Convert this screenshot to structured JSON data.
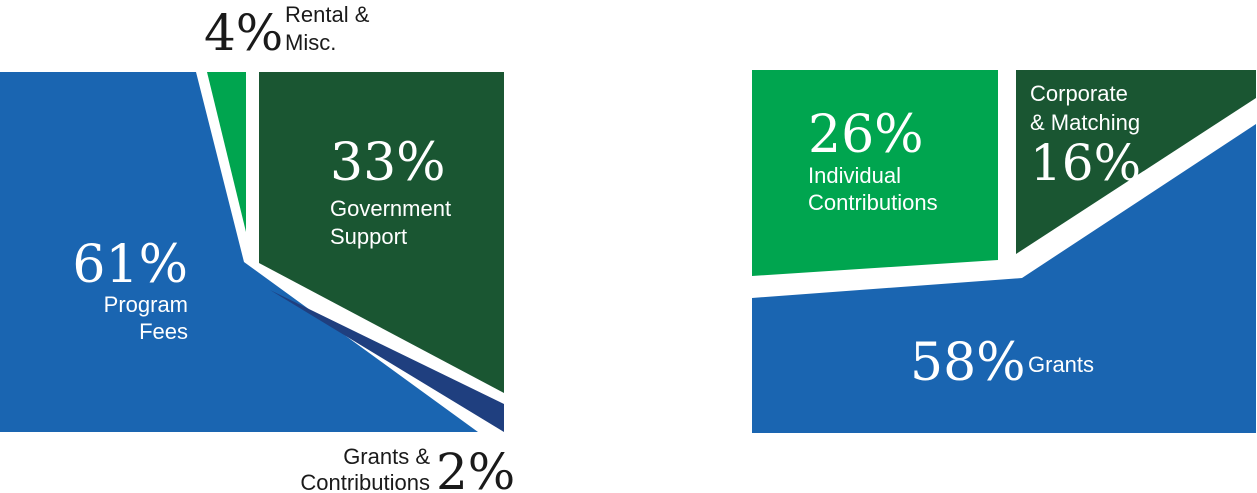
{
  "chart_data": [
    {
      "type": "area",
      "title": "",
      "segments": [
        {
          "name": "Program Fees",
          "label_lines": [
            "Program",
            "Fees"
          ],
          "value": 61,
          "display": "61%",
          "color": "#1a65b1"
        },
        {
          "name": "Rental & Misc.",
          "label_lines": [
            "Rental &",
            "Misc."
          ],
          "value": 4,
          "display": "4%",
          "color": "#00a54f"
        },
        {
          "name": "Government Support",
          "label_lines": [
            "Government",
            "Support"
          ],
          "value": 33,
          "display": "33%",
          "color": "#1a5632"
        },
        {
          "name": "Grants & Contributions",
          "label_lines": [
            "Grants &",
            "Contributions"
          ],
          "value": 2,
          "display": "2%",
          "color": "#1f3f7f"
        }
      ]
    },
    {
      "type": "area",
      "title": "",
      "segments": [
        {
          "name": "Individual Contributions",
          "label_lines": [
            "Individual",
            "Contributions"
          ],
          "value": 26,
          "display": "26%",
          "color": "#00a54f"
        },
        {
          "name": "Corporate & Matching",
          "label_lines": [
            "Corporate",
            "& Matching"
          ],
          "value": 16,
          "display": "16%",
          "color": "#1a5632"
        },
        {
          "name": "Grants",
          "label_lines": [
            "Grants"
          ],
          "value": 58,
          "display": "58%",
          "color": "#1a65b1"
        }
      ]
    }
  ]
}
